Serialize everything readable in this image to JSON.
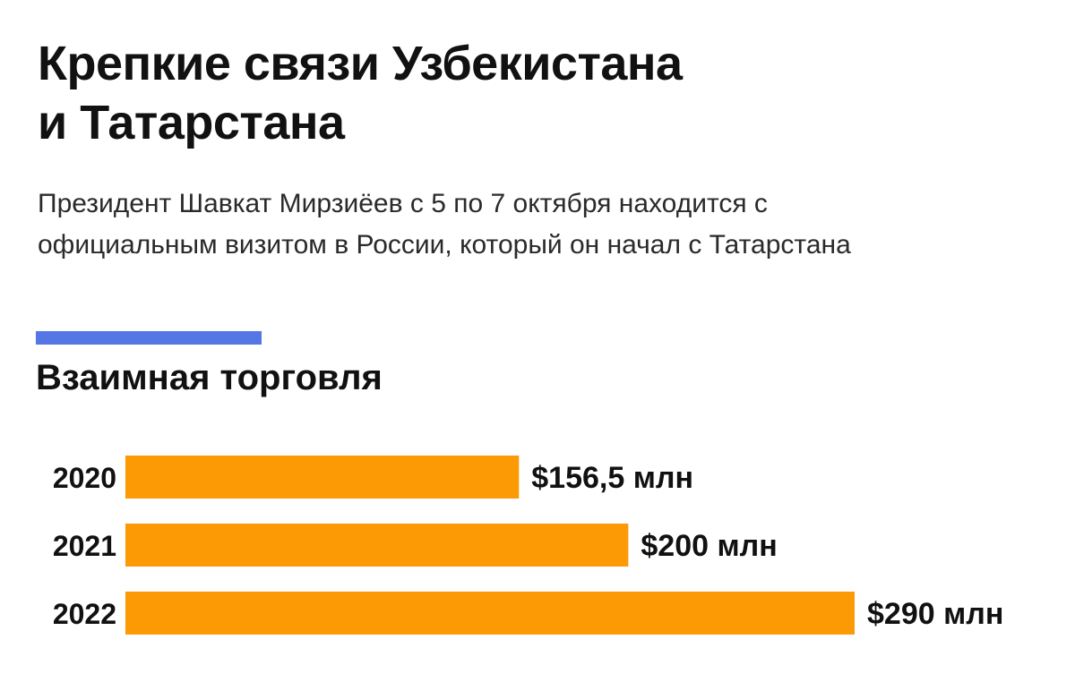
{
  "header": {
    "title_line1": "Крепкие связи Узбекистана",
    "title_line2": "и Татарстана",
    "subtitle_line1": "Президент Шавкат Мирзиёев с 5 по 7 октября находится с",
    "subtitle_line2": "официальным визитом в России, который он начал с Татарстана"
  },
  "colors": {
    "accent_line": "#5577e6",
    "bar": "#fb9a05",
    "text": "#111111"
  },
  "chart_data": {
    "type": "bar",
    "orientation": "horizontal",
    "title": "Взаимная торговля",
    "categories": [
      "2020",
      "2021",
      "2022"
    ],
    "values": [
      156.5,
      200,
      290
    ],
    "value_labels": [
      "$156,5 млн",
      "$200 млн",
      "$290 млн"
    ],
    "xlabel": "",
    "ylabel": "",
    "xlim": [
      0,
      290
    ],
    "grid": false,
    "legend": "none"
  }
}
